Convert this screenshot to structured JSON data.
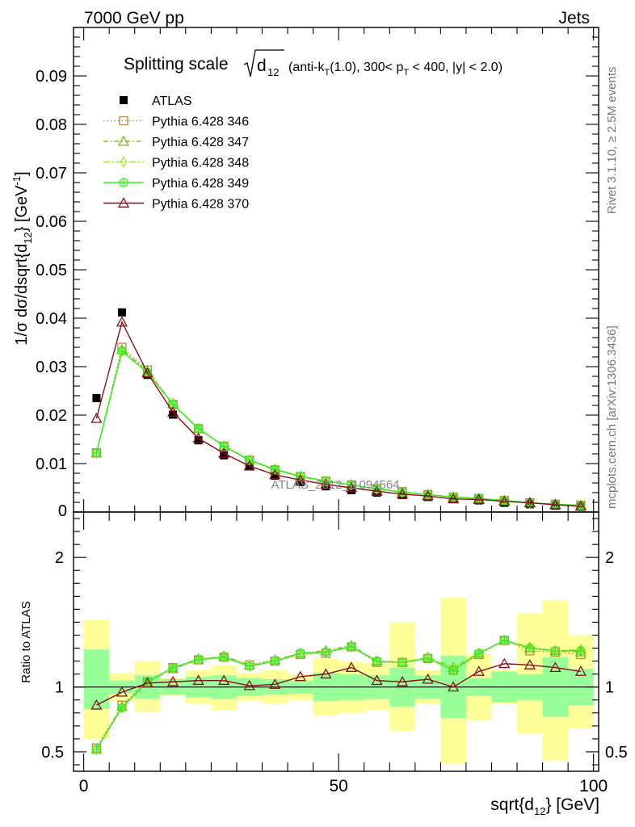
{
  "header": {
    "left": "7000 GeV pp",
    "right": "Jets"
  },
  "title": {
    "main": "Splitting scale",
    "radicand": "d",
    "radicand_sub": "12",
    "detail": "(anti-k",
    "detail_sub": "T",
    "detail_rest": "(1.0), 300< p",
    "detail_sub2": "T",
    "detail_end": " < 400, |y| < 2.0)"
  },
  "side_labels": {
    "rivet": "Rivet 3.1.10, ≥ 2.5M events",
    "mcplots": "mcplots.cern.ch [arXiv:1306.3436]"
  },
  "watermark": "ATLAS_2012_I1094564",
  "chart_data": [
    {
      "type": "line",
      "panel": "main",
      "ylabel": "1/σ dσ/dsqrt{d_12} [GeV^-1]",
      "xlim": [
        -2,
        101
      ],
      "ylim": [
        0,
        0.1
      ],
      "yticks": [
        "0.01",
        "0.02",
        "0.03",
        "0.04",
        "0.05",
        "0.06",
        "0.07",
        "0.08",
        "0.09"
      ],
      "ytick_values": [
        0.01,
        0.02,
        0.03,
        0.04,
        0.05,
        0.06,
        0.07,
        0.08,
        0.09
      ],
      "y_zero_label": "0",
      "x": [
        2.5,
        7.5,
        12.5,
        17.5,
        22.5,
        27.5,
        32.5,
        37.5,
        42.5,
        47.5,
        52.5,
        57.5,
        62.5,
        67.5,
        72.5,
        77.5,
        82.5,
        87.5,
        92.5,
        97.5
      ],
      "series": [
        {
          "name": "ATLAS",
          "marker": "filled-square",
          "color": "#000000",
          "values": [
            0.0235,
            0.0412,
            0.0283,
            0.0201,
            0.0148,
            0.0117,
            0.0094,
            0.0075,
            0.0062,
            0.0053,
            0.0045,
            0.004,
            0.0035,
            0.0031,
            0.0027,
            0.0024,
            0.0019,
            0.0016,
            0.0013,
            0.0011
          ]
        },
        {
          "name": "Pythia 6.428 346",
          "marker": "open-square",
          "color": "#b8893c",
          "dash": "1.5,3",
          "values": [
            0.0122,
            0.034,
            0.0293,
            0.0222,
            0.0172,
            0.0136,
            0.0107,
            0.0087,
            0.0073,
            0.0064,
            0.0056,
            0.0048,
            0.0042,
            0.0036,
            0.0031,
            0.0028,
            0.0024,
            0.0019,
            0.0016,
            0.0014
          ]
        },
        {
          "name": "Pythia 6.428 347",
          "marker": "open-triangle",
          "color": "#88b818",
          "dash": "6,3,1.5,3",
          "values": [
            0.0122,
            0.0335,
            0.029,
            0.0224,
            0.0172,
            0.0136,
            0.0107,
            0.0087,
            0.0073,
            0.0063,
            0.0056,
            0.0048,
            0.0041,
            0.0036,
            0.0031,
            0.0028,
            0.0024,
            0.0019,
            0.0016,
            0.0013
          ]
        },
        {
          "name": "Pythia 6.428 348",
          "marker": "open-diamond",
          "color": "#9ee632",
          "dash": "8,3,2,3",
          "values": [
            0.0122,
            0.0332,
            0.0289,
            0.0223,
            0.0173,
            0.0137,
            0.0108,
            0.0089,
            0.0074,
            0.0064,
            0.0056,
            0.0048,
            0.0041,
            0.0036,
            0.0031,
            0.0028,
            0.0024,
            0.0019,
            0.0016,
            0.0014
          ]
        },
        {
          "name": "Pythia 6.428 349",
          "marker": "crossed-circle",
          "color": "#33ee22",
          "dash": "",
          "values": [
            0.0122,
            0.0332,
            0.0288,
            0.0222,
            0.0172,
            0.0136,
            0.0107,
            0.0088,
            0.0074,
            0.0064,
            0.0056,
            0.0048,
            0.0041,
            0.0036,
            0.0031,
            0.0028,
            0.0024,
            0.0019,
            0.0016,
            0.0014
          ]
        },
        {
          "name": "Pythia 6.428 370",
          "marker": "open-triangle",
          "color": "#8b0d1a",
          "dash": "",
          "values": [
            0.0193,
            0.0392,
            0.0287,
            0.0206,
            0.0152,
            0.0121,
            0.0095,
            0.0077,
            0.0066,
            0.0057,
            0.005,
            0.0043,
            0.0037,
            0.0033,
            0.0027,
            0.0026,
            0.0022,
            0.0019,
            0.0015,
            0.0012
          ]
        }
      ]
    },
    {
      "type": "line",
      "panel": "ratio",
      "ylabel": "Ratio to ATLAS",
      "xlabel": "sqrt{d_12} [GeV]",
      "xlim": [
        -2,
        101
      ],
      "ylim": [
        0.35,
        2.35
      ],
      "xticks": [
        "0",
        "50",
        "100"
      ],
      "xtick_values": [
        0,
        50,
        100
      ],
      "yticks": [
        "0.5",
        "1",
        "2"
      ],
      "ytick_values": [
        0.5,
        1,
        2
      ],
      "x": [
        2.5,
        7.5,
        12.5,
        17.5,
        22.5,
        27.5,
        32.5,
        37.5,
        42.5,
        47.5,
        52.5,
        57.5,
        62.5,
        67.5,
        72.5,
        77.5,
        82.5,
        87.5,
        92.5,
        97.5
      ],
      "bins_lo": [
        0,
        5,
        10,
        15,
        20,
        25,
        30,
        35,
        40,
        45,
        50,
        55,
        60,
        65,
        70,
        75,
        80,
        85,
        90,
        95
      ],
      "bins_hi": [
        5,
        10,
        15,
        20,
        25,
        30,
        35,
        40,
        45,
        50,
        55,
        60,
        65,
        70,
        75,
        80,
        85,
        90,
        95,
        100
      ],
      "band_stat": [
        [
          0.83,
          1.29
        ],
        [
          0.95,
          1.05
        ],
        [
          0.91,
          1.09
        ],
        [
          0.94,
          1.06
        ],
        [
          0.92,
          1.08
        ],
        [
          0.91,
          1.09
        ],
        [
          0.93,
          1.07
        ],
        [
          0.94,
          1.06
        ],
        [
          0.95,
          1.05
        ],
        [
          0.89,
          1.11
        ],
        [
          0.9,
          1.1
        ],
        [
          0.91,
          1.09
        ],
        [
          0.85,
          1.15
        ],
        [
          0.91,
          1.09
        ],
        [
          0.76,
          1.24
        ],
        [
          0.93,
          1.07
        ],
        [
          0.88,
          1.12
        ],
        [
          0.9,
          1.1
        ],
        [
          0.77,
          1.23
        ],
        [
          0.86,
          1.14
        ]
      ],
      "band_total": [
        [
          0.6,
          1.52
        ],
        [
          0.89,
          1.11
        ],
        [
          0.81,
          1.2
        ],
        [
          0.93,
          1.07
        ],
        [
          0.87,
          1.13
        ],
        [
          0.82,
          1.17
        ],
        [
          0.89,
          1.11
        ],
        [
          0.87,
          1.13
        ],
        [
          0.9,
          1.1
        ],
        [
          0.78,
          1.22
        ],
        [
          0.8,
          1.2
        ],
        [
          0.82,
          1.18
        ],
        [
          0.66,
          1.5
        ],
        [
          0.87,
          1.13
        ],
        [
          0.41,
          1.69
        ],
        [
          0.74,
          1.26
        ],
        [
          0.87,
          1.13
        ],
        [
          0.64,
          1.57
        ],
        [
          0.43,
          1.67
        ],
        [
          0.68,
          1.4
        ]
      ],
      "series": [
        {
          "name": "Pythia 6.428 346",
          "marker": "open-square",
          "color": "#b8893c",
          "dash": "1.5,3",
          "values": [
            0.53,
            0.86,
            1.04,
            1.15,
            1.21,
            1.23,
            1.17,
            1.2,
            1.25,
            1.26,
            1.31,
            1.19,
            1.19,
            1.22,
            1.13,
            1.25,
            1.36,
            1.28,
            1.27,
            1.25
          ]
        },
        {
          "name": "Pythia 6.428 347",
          "marker": "open-triangle",
          "color": "#88b818",
          "dash": "6,3,1.5,3",
          "values": [
            0.52,
            0.85,
            1.04,
            1.14,
            1.21,
            1.24,
            1.17,
            1.21,
            1.26,
            1.28,
            1.32,
            1.2,
            1.19,
            1.23,
            1.15,
            1.26,
            1.36,
            1.3,
            1.28,
            1.27
          ]
        },
        {
          "name": "Pythia 6.428 348",
          "marker": "open-diamond",
          "color": "#9ee632",
          "dash": "8,3,2,3",
          "values": [
            0.52,
            0.84,
            1.04,
            1.15,
            1.22,
            1.23,
            1.17,
            1.21,
            1.26,
            1.27,
            1.31,
            1.2,
            1.19,
            1.23,
            1.14,
            1.26,
            1.36,
            1.31,
            1.28,
            1.29
          ]
        },
        {
          "name": "Pythia 6.428 349",
          "marker": "crossed-circle",
          "color": "#33ee22",
          "dash": "",
          "values": [
            0.52,
            0.84,
            1.04,
            1.15,
            1.21,
            1.23,
            1.16,
            1.2,
            1.26,
            1.27,
            1.31,
            1.2,
            1.19,
            1.22,
            1.13,
            1.26,
            1.36,
            1.3,
            1.28,
            1.28
          ]
        },
        {
          "name": "Pythia 6.428 370",
          "marker": "open-triangle",
          "color": "#8b0d1a",
          "dash": "",
          "values": [
            0.86,
            0.96,
            1.03,
            1.04,
            1.05,
            1.05,
            1.01,
            1.02,
            1.08,
            1.1,
            1.15,
            1.05,
            1.04,
            1.06,
            1.0,
            1.12,
            1.18,
            1.17,
            1.15,
            1.12
          ]
        }
      ]
    }
  ]
}
